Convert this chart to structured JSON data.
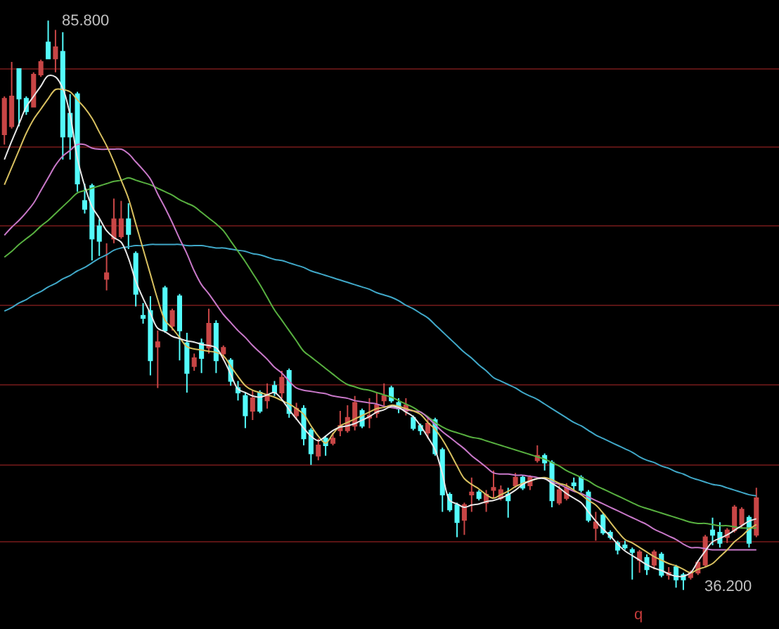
{
  "chart_data": {
    "type": "candlestick",
    "categories": [
      null,
      null,
      null,
      null,
      null,
      null,
      null,
      null,
      null,
      null,
      null,
      null,
      null,
      null,
      null,
      null,
      null,
      null,
      null,
      null,
      null,
      null,
      null,
      null,
      null,
      null,
      null,
      null,
      null,
      null,
      null,
      null,
      null,
      null,
      null,
      null,
      null,
      null,
      null,
      null,
      null,
      null,
      null,
      null,
      null,
      null,
      null,
      null,
      null,
      null,
      null,
      null,
      null,
      null,
      null,
      null,
      null,
      null,
      null,
      null,
      null,
      null,
      null,
      null,
      null,
      null,
      null,
      null,
      null,
      null,
      null,
      null,
      null,
      null,
      null,
      null,
      null,
      null,
      null,
      null,
      null,
      null,
      null,
      null,
      null,
      null,
      null,
      null,
      null,
      null,
      null,
      null,
      null,
      null,
      null,
      null,
      null,
      null,
      null,
      null,
      null,
      null,
      null,
      null
    ],
    "ohlc": [
      [
        75.9,
        79.2,
        75.0,
        79.0
      ],
      [
        76.6,
        82.2,
        76.4,
        79.2
      ],
      [
        81.6,
        81.6,
        76.6,
        79.0
      ],
      [
        79.0,
        79.2,
        77.6,
        77.9
      ],
      [
        78.3,
        81.3,
        78.3,
        81.1
      ],
      [
        81.1,
        82.4,
        80.9,
        82.2
      ],
      [
        83.9,
        85.8,
        82.5,
        82.5
      ],
      [
        82.5,
        85.0,
        81.3,
        83.5
      ],
      [
        83.1,
        84.8,
        73.7,
        75.7
      ],
      [
        77.7,
        79.4,
        73.7,
        75.7
      ],
      [
        79.4,
        79.6,
        70.9,
        71.6
      ],
      [
        70.1,
        71.6,
        69.0,
        69.4
      ],
      [
        71.4,
        71.6,
        64.9,
        66.8
      ],
      [
        67.9,
        68.5,
        65.3,
        66.6
      ],
      [
        63.3,
        66.4,
        62.3,
        63.8
      ],
      [
        66.8,
        70.3,
        66.4,
        68.5
      ],
      [
        67.0,
        70.1,
        66.8,
        68.5
      ],
      [
        68.5,
        69.9,
        65.9,
        67.2
      ],
      [
        65.5,
        65.7,
        60.9,
        62.0
      ],
      [
        60.1,
        61.2,
        59.4,
        59.9
      ],
      [
        60.5,
        61.8,
        54.9,
        56.2
      ],
      [
        57.4,
        58.8,
        53.8,
        57.8
      ],
      [
        62.5,
        62.7,
        58.6,
        58.8
      ],
      [
        59.2,
        60.7,
        58.8,
        60.5
      ],
      [
        61.8,
        62.0,
        56.2,
        58.8
      ],
      [
        57.7,
        58.6,
        53.4,
        55.1
      ],
      [
        55.7,
        56.8,
        55.3,
        56.4
      ],
      [
        57.7,
        58.1,
        55.1,
        56.4
      ],
      [
        57.3,
        60.7,
        56.8,
        59.4
      ],
      [
        59.4,
        59.7,
        55.1,
        56.2
      ],
      [
        56.8,
        57.5,
        56.2,
        57.3
      ],
      [
        56.2,
        56.4,
        54.0,
        54.4
      ],
      [
        53.8,
        54.4,
        52.7,
        53.4
      ],
      [
        53.1,
        53.4,
        50.3,
        51.4
      ],
      [
        51.8,
        53.6,
        51.0,
        52.9
      ],
      [
        53.4,
        53.6,
        51.6,
        51.8
      ],
      [
        52.7,
        54.2,
        52.0,
        53.1
      ],
      [
        54.0,
        54.4,
        53.1,
        53.4
      ],
      [
        53.4,
        55.3,
        52.9,
        54.7
      ],
      [
        55.3,
        55.5,
        51.2,
        51.6
      ],
      [
        51.4,
        52.5,
        51.0,
        52.0
      ],
      [
        52.0,
        52.3,
        48.8,
        49.4
      ],
      [
        50.1,
        50.3,
        47.1,
        48.1
      ],
      [
        47.9,
        49.4,
        47.5,
        48.8
      ],
      [
        49.4,
        49.6,
        47.9,
        48.8
      ],
      [
        49.0,
        49.9,
        48.8,
        49.4
      ],
      [
        50.1,
        51.8,
        49.6,
        50.5
      ],
      [
        50.1,
        52.3,
        49.9,
        51.2
      ],
      [
        50.5,
        53.1,
        50.1,
        52.5
      ],
      [
        51.8,
        52.0,
        50.3,
        50.5
      ],
      [
        51.2,
        52.9,
        50.3,
        51.4
      ],
      [
        51.6,
        53.4,
        51.2,
        52.3
      ],
      [
        52.7,
        54.2,
        52.3,
        53.1
      ],
      [
        53.8,
        54.0,
        52.5,
        52.7
      ],
      [
        52.5,
        52.9,
        51.6,
        52.0
      ],
      [
        51.8,
        52.9,
        51.4,
        52.3
      ],
      [
        51.2,
        51.4,
        50.1,
        50.3
      ],
      [
        50.5,
        50.7,
        49.7,
        50.1
      ],
      [
        49.9,
        51.2,
        49.4,
        50.7
      ],
      [
        51.0,
        51.2,
        47.9,
        48.1
      ],
      [
        48.4,
        48.6,
        43.0,
        44.5
      ],
      [
        44.5,
        44.7,
        43.0,
        43.2
      ],
      [
        43.6,
        43.8,
        40.8,
        42.1
      ],
      [
        42.3,
        43.8,
        41.0,
        43.6
      ],
      [
        44.5,
        46.0,
        43.0,
        44.7
      ],
      [
        44.7,
        44.9,
        44.0,
        44.2
      ],
      [
        43.8,
        44.9,
        43.0,
        44.5
      ],
      [
        44.9,
        46.6,
        44.2,
        45.1
      ],
      [
        44.2,
        45.3,
        44.0,
        44.9
      ],
      [
        44.5,
        45.1,
        42.5,
        44.0
      ],
      [
        45.3,
        46.4,
        45.1,
        46.0
      ],
      [
        46.0,
        46.2,
        44.9,
        45.1
      ],
      [
        45.3,
        46.2,
        44.9,
        46.0
      ],
      [
        47.5,
        48.8,
        47.3,
        47.9
      ],
      [
        47.9,
        48.1,
        46.6,
        47.3
      ],
      [
        47.3,
        47.5,
        43.4,
        44.0
      ],
      [
        43.8,
        45.3,
        43.6,
        44.9
      ],
      [
        44.2,
        45.5,
        44.0,
        45.1
      ],
      [
        45.5,
        46.0,
        44.9,
        45.3
      ],
      [
        46.0,
        46.2,
        44.7,
        44.9
      ],
      [
        44.7,
        44.9,
        42.1,
        42.3
      ],
      [
        41.6,
        43.0,
        40.5,
        42.1
      ],
      [
        42.7,
        42.9,
        41.0,
        41.2
      ],
      [
        41.2,
        41.4,
        40.6,
        40.8
      ],
      [
        40.3,
        40.5,
        39.3,
        39.7
      ],
      [
        40.1,
        40.5,
        39.7,
        39.9
      ],
      [
        39.7,
        39.9,
        37.1,
        39.5
      ],
      [
        38.8,
        39.7,
        37.7,
        39.5
      ],
      [
        39.0,
        39.3,
        37.5,
        38.0
      ],
      [
        38.4,
        39.7,
        38.0,
        39.5
      ],
      [
        39.3,
        39.5,
        37.3,
        37.5
      ],
      [
        37.5,
        38.2,
        37.1,
        37.7
      ],
      [
        38.2,
        38.4,
        36.4,
        37.1
      ],
      [
        37.5,
        37.7,
        36.2,
        37.1
      ],
      [
        37.3,
        37.9,
        37.1,
        37.7
      ],
      [
        37.7,
        38.8,
        37.5,
        38.6
      ],
      [
        38.4,
        41.0,
        38.2,
        40.8
      ],
      [
        41.4,
        42.5,
        40.1,
        41.0
      ],
      [
        41.2,
        42.1,
        39.9,
        40.3
      ],
      [
        40.8,
        41.6,
        40.3,
        41.4
      ],
      [
        41.4,
        43.6,
        41.2,
        43.4
      ],
      [
        41.9,
        43.4,
        41.6,
        43.2
      ],
      [
        42.5,
        42.7,
        39.9,
        40.3
      ],
      [
        41.0,
        45.1,
        40.8,
        44.2
      ]
    ],
    "colors": [
      "#c84646",
      "#c84646",
      "#54fcfc",
      "#54fcfc",
      "#c84646",
      "#c84646",
      "#54fcfc",
      "#c84646",
      "#54fcfc",
      "#54fcfc",
      "#54fcfc",
      "#54fcfc",
      "#54fcfc",
      "#54fcfc",
      "#c84646",
      "#c84646",
      "#c84646",
      "#54fcfc",
      "#54fcfc",
      "#54fcfc",
      "#54fcfc",
      "#c84646",
      "#54fcfc",
      "#c84646",
      "#54fcfc",
      "#54fcfc",
      "#c84646",
      "#54fcfc",
      "#c84646",
      "#54fcfc",
      "#c84646",
      "#54fcfc",
      "#54fcfc",
      "#54fcfc",
      "#c84646",
      "#54fcfc",
      "#c84646",
      "#54fcfc",
      "#c84646",
      "#54fcfc",
      "#c84646",
      "#54fcfc",
      "#54fcfc",
      "#c84646",
      "#54fcfc",
      "#c84646",
      "#c84646",
      "#c84646",
      "#c84646",
      "#54fcfc",
      "#c84646",
      "#c84646",
      "#c84646",
      "#54fcfc",
      "#54fcfc",
      "#c84646",
      "#54fcfc",
      "#54fcfc",
      "#c84646",
      "#54fcfc",
      "#54fcfc",
      "#54fcfc",
      "#54fcfc",
      "#c84646",
      "#c84646",
      "#54fcfc",
      "#c84646",
      "#c84646",
      "#c84646",
      "#54fcfc",
      "#c84646",
      "#54fcfc",
      "#c84646",
      "#c84646",
      "#54fcfc",
      "#54fcfc",
      "#c84646",
      "#c84646",
      "#54fcfc",
      "#54fcfc",
      "#54fcfc",
      "#c84646",
      "#54fcfc",
      "#54fcfc",
      "#54fcfc",
      "#54fcfc",
      "#54fcfc",
      "#c84646",
      "#54fcfc",
      "#c84646",
      "#54fcfc",
      "#c84646",
      "#54fcfc",
      "#54fcfc",
      "#c84646",
      "#c84646",
      "#c84646",
      "#54fcfc",
      "#54fcfc",
      "#c84646",
      "#c84646",
      "#c84646",
      "#54fcfc",
      "#c84646"
    ],
    "series": [
      {
        "type": "line",
        "color": "#40a8c8",
        "values": [
          60.5,
          60.8,
          61.2,
          61.5,
          61.9,
          62.2,
          62.6,
          62.9,
          63.3,
          63.6,
          64.0,
          64.3,
          64.7,
          65.1,
          65.4,
          65.8,
          66.0,
          66.1,
          66.2,
          66.2,
          66.3,
          66.3,
          66.3,
          66.3,
          66.3,
          66.2,
          66.2,
          66.2,
          66.1,
          66.0,
          66.0,
          65.9,
          65.8,
          65.7,
          65.5,
          65.4,
          65.2,
          65.0,
          64.9,
          64.7,
          64.5,
          64.3,
          64.0,
          63.8,
          63.6,
          63.4,
          63.2,
          63.0,
          62.8,
          62.6,
          62.4,
          62.1,
          61.9,
          61.7,
          61.4,
          61.0,
          60.7,
          60.3,
          59.9,
          59.3,
          58.7,
          58.1,
          57.5,
          56.9,
          56.4,
          55.8,
          55.3,
          54.7,
          54.4,
          54.1,
          53.8,
          53.4,
          53.1,
          52.8,
          52.4,
          52.0,
          51.6,
          51.2,
          50.8,
          50.5,
          50.1,
          49.7,
          49.4,
          49.1,
          48.8,
          48.5,
          48.2,
          47.8,
          47.5,
          47.3,
          47.0,
          46.8,
          46.5,
          46.3,
          46.0,
          45.8,
          45.6,
          45.4,
          45.3,
          45.1,
          44.9,
          44.7,
          44.5,
          44.4
        ]
      },
      {
        "type": "line",
        "color": "#58b040",
        "values": [
          65.2,
          65.7,
          66.3,
          66.8,
          67.3,
          67.9,
          68.4,
          69.0,
          69.6,
          70.2,
          70.8,
          71.0,
          71.2,
          71.4,
          71.6,
          71.8,
          71.9,
          72.1,
          71.9,
          71.7,
          71.5,
          71.2,
          70.9,
          70.6,
          70.2,
          69.9,
          69.6,
          69.1,
          68.6,
          68.1,
          67.5,
          66.6,
          65.7,
          64.8,
          63.8,
          62.8,
          61.7,
          60.6,
          59.7,
          58.8,
          57.9,
          57.0,
          56.5,
          56.0,
          55.5,
          55.0,
          54.5,
          54.1,
          53.9,
          53.7,
          53.6,
          53.4,
          53.2,
          53.0,
          52.7,
          52.4,
          52.1,
          51.7,
          51.3,
          50.8,
          50.4,
          50.1,
          49.9,
          49.7,
          49.5,
          49.4,
          49.2,
          49.0,
          48.8,
          48.6,
          48.4,
          48.2,
          48.0,
          47.8,
          47.6,
          47.3,
          47.0,
          46.6,
          46.3,
          46.0,
          45.7,
          45.3,
          45.0,
          44.7,
          44.4,
          44.1,
          43.8,
          43.5,
          43.3,
          43.1,
          42.9,
          42.7,
          42.5,
          42.3,
          42.1,
          42.0,
          42.0,
          41.9,
          41.8,
          41.8,
          41.7,
          41.6,
          41.6,
          41.6
        ]
      },
      {
        "type": "line",
        "color": "#c878c8",
        "values": [
          67.1,
          67.8,
          68.4,
          69.1,
          69.9,
          71.0,
          72.1,
          73.2,
          74.0,
          74.5,
          75.0,
          75.0,
          74.7,
          74.6,
          74.6,
          74.6,
          74.6,
          74.2,
          73.5,
          72.8,
          72.0,
          70.7,
          69.5,
          68.2,
          66.8,
          65.5,
          64.0,
          62.8,
          62.0,
          61.1,
          60.2,
          59.5,
          58.8,
          58.2,
          57.5,
          56.9,
          56.3,
          55.6,
          55.1,
          54.4,
          53.8,
          53.6,
          53.5,
          53.4,
          53.3,
          53.1,
          53.0,
          52.9,
          52.7,
          52.6,
          52.5,
          52.4,
          52.2,
          52.1,
          52.0,
          51.9,
          51.8,
          51.7,
          51.2,
          50.6,
          50.0,
          49.5,
          49.0,
          48.5,
          47.9,
          47.4,
          46.9,
          46.4,
          46.3,
          46.3,
          46.2,
          46.2,
          46.1,
          46.0,
          45.9,
          45.6,
          45.4,
          45.1,
          44.8,
          44.6,
          44.3,
          44.0,
          43.7,
          43.4,
          43.1,
          42.8,
          42.5,
          42.2,
          41.9,
          41.5,
          41.2,
          40.9,
          40.6,
          40.2,
          39.9,
          39.9,
          39.8,
          39.7,
          39.7,
          39.7,
          39.7,
          39.7,
          39.7,
          39.7
        ]
      },
      {
        "type": "line",
        "color": "#d8c060",
        "values": [
          71.5,
          73.0,
          74.5,
          76.0,
          77.2,
          78.1,
          79.0,
          79.8,
          79.8,
          79.6,
          78.9,
          78.2,
          77.3,
          76.1,
          74.9,
          73.5,
          71.9,
          70.3,
          68.1,
          65.9,
          63.7,
          61.5,
          59.7,
          59.0,
          58.2,
          57.4,
          57.2,
          57.1,
          57.0,
          56.9,
          56.6,
          55.7,
          54.8,
          54.0,
          53.6,
          53.4,
          53.2,
          53.0,
          52.7,
          52.4,
          52.0,
          51.5,
          50.5,
          49.6,
          49.0,
          49.8,
          50.5,
          50.8,
          51.1,
          51.4,
          51.7,
          52.0,
          52.1,
          52.3,
          52.2,
          52.0,
          51.8,
          51.5,
          50.8,
          50.2,
          49.3,
          48.2,
          47.0,
          45.9,
          45.4,
          45.0,
          44.5,
          44.2,
          44.5,
          44.8,
          45.2,
          45.5,
          45.7,
          45.9,
          46.0,
          45.8,
          45.5,
          45.3,
          44.9,
          44.5,
          44.0,
          43.6,
          42.9,
          42.1,
          41.3,
          40.6,
          40.3,
          39.9,
          39.5,
          39.1,
          38.8,
          38.5,
          38.3,
          38.0,
          37.7,
          38.0,
          38.2,
          38.5,
          39.1,
          39.7,
          40.4,
          40.9,
          41.5,
          41.9
        ]
      },
      {
        "type": "line",
        "color": "#e8e8e8",
        "values": [
          73.7,
          75.3,
          76.8,
          78.3,
          79.2,
          80.1,
          81.0,
          80.9,
          79.9,
          77.6,
          73.8,
          71.4,
          69.6,
          68.6,
          67.5,
          66.9,
          66.5,
          65.1,
          63.1,
          61.6,
          60.3,
          59.0,
          58.7,
          58.3,
          58.1,
          57.9,
          57.8,
          57.6,
          57.5,
          57.3,
          56.3,
          55.0,
          53.7,
          53.4,
          53.1,
          53.0,
          53.2,
          53.4,
          52.8,
          51.9,
          51.1,
          50.3,
          49.6,
          49.2,
          49.6,
          50.1,
          50.4,
          50.5,
          50.7,
          51.0,
          51.3,
          51.7,
          51.9,
          52.2,
          52.1,
          51.7,
          51.3,
          50.5,
          49.5,
          48.4,
          46.3,
          44.0,
          43.7,
          43.4,
          43.6,
          43.7,
          43.9,
          44.0,
          44.2,
          44.5,
          44.9,
          45.4,
          45.7,
          45.9,
          45.9,
          45.5,
          45.1,
          44.6,
          44.2,
          43.8,
          43.0,
          42.2,
          41.5,
          40.9,
          40.2,
          39.6,
          39.2,
          38.8,
          38.4,
          38.1,
          37.9,
          37.6,
          37.4,
          37.4,
          37.7,
          38.7,
          39.6,
          40.4,
          40.7,
          41.0,
          41.4,
          41.8,
          42.2,
          42.4
        ]
      }
    ],
    "ylim": [
      32.8,
      87.6
    ],
    "yticks": [
      {
        "value": 81.6,
        "label": null
      },
      {
        "value": 74.8,
        "label": null
      },
      {
        "value": 67.9,
        "label": null
      },
      {
        "value": 61.0,
        "label": null
      },
      {
        "value": 54.1,
        "label": null
      },
      {
        "value": 47.1,
        "label": null
      },
      {
        "value": 40.4,
        "label": null
      }
    ],
    "grid": "y",
    "tick_labels": false,
    "annotations": [
      "85.800",
      "36.200",
      "q"
    ]
  }
}
